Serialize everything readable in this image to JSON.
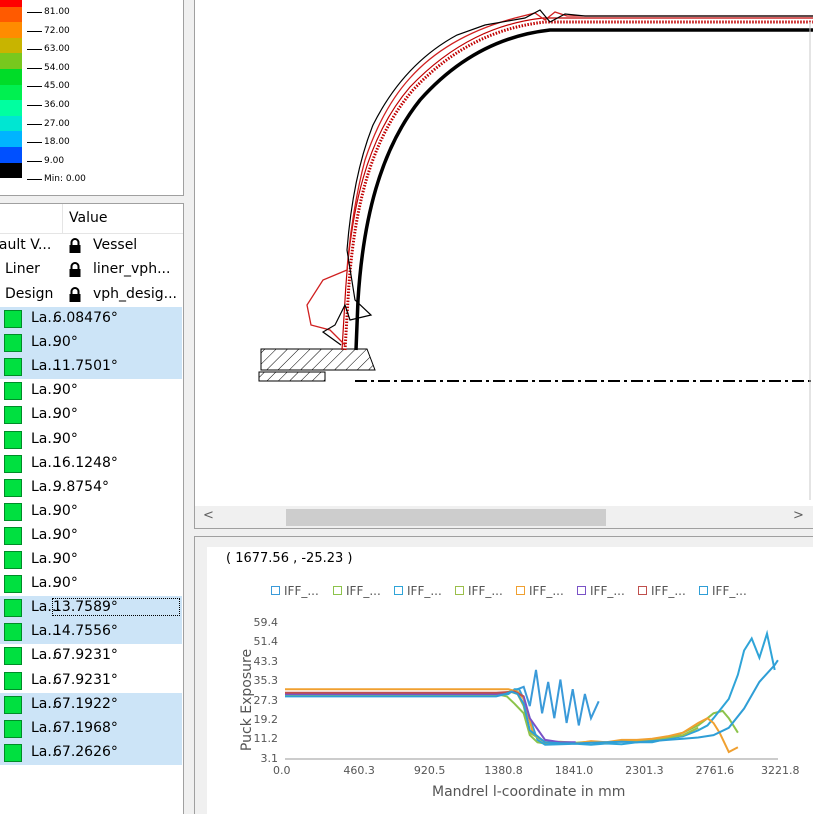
{
  "legend": {
    "labels": [
      "81.00",
      "72.00",
      "63.00",
      "54.00",
      "45.00",
      "36.00",
      "27.00",
      "18.00",
      "9.00",
      "Min: 0.00"
    ],
    "colors": [
      "#ff0000",
      "#ff5a00",
      "#ff8c00",
      "#c8b400",
      "#78c81e",
      "#00dc28",
      "#00f050",
      "#00ffa0",
      "#00e6d2",
      "#00b4ff",
      "#0050ff",
      "#000000"
    ]
  },
  "properties": {
    "header_value": "Value",
    "lock_rows": [
      {
        "name": "fault V...",
        "value": "Vessel"
      },
      {
        "name": "Liner",
        "value": "liner_vph..."
      },
      {
        "name": "Design",
        "value": "vph_desig..."
      }
    ],
    "layers": [
      {
        "name": "La...",
        "value": "6.08476°",
        "selected": true
      },
      {
        "name": "La...",
        "value": "90°",
        "selected": true
      },
      {
        "name": "La...",
        "value": "11.7501°",
        "selected": true
      },
      {
        "name": "La...",
        "value": "90°",
        "selected": false
      },
      {
        "name": "La...",
        "value": "90°",
        "selected": false
      },
      {
        "name": "La...",
        "value": "90°",
        "selected": false
      },
      {
        "name": "La...",
        "value": "16.1248°",
        "selected": false
      },
      {
        "name": "La...",
        "value": "9.8754°",
        "selected": false
      },
      {
        "name": "La...",
        "value": "90°",
        "selected": false
      },
      {
        "name": "La...",
        "value": "90°",
        "selected": false
      },
      {
        "name": "La...",
        "value": "90°",
        "selected": false
      },
      {
        "name": "La...",
        "value": "90°",
        "selected": false
      },
      {
        "name": "La...",
        "value": "13.7589°",
        "selected": true,
        "focus": true
      },
      {
        "name": "La...",
        "value": "14.7556°",
        "selected": true
      },
      {
        "name": "La...",
        "value": "67.9231°",
        "selected": false
      },
      {
        "name": "La...",
        "value": "67.9231°",
        "selected": false
      },
      {
        "name": "La...",
        "value": "67.1922°",
        "selected": true
      },
      {
        "name": "La...",
        "value": "67.1968°",
        "selected": true
      },
      {
        "name": "La...",
        "value": "67.2626°",
        "selected": true
      }
    ]
  },
  "scroll": {
    "left_arrow": "<",
    "right_arrow": ">"
  },
  "coordinates_readout": "( 1677.56 , -25.23 )",
  "chart_data": {
    "type": "line",
    "xlabel": "Mandrel l-coordinate in mm",
    "ylabel": "Puck Exposure",
    "x_ticks": [
      "0.0",
      "460.3",
      "920.5",
      "1380.8",
      "1841.0",
      "2301.3",
      "2761.6",
      "3221.8"
    ],
    "y_ticks": [
      "59.4",
      "51.4",
      "43.3",
      "35.3",
      "27.3",
      "19.2",
      "11.2",
      "3.1"
    ],
    "xlim": [
      0,
      3221.8
    ],
    "ylim": [
      3.1,
      59.4
    ],
    "legend_position": "top",
    "series": [
      {
        "name": "IFF_...",
        "color": "#3a9ad9",
        "x": [
          0,
          1380,
          1480,
          1560,
          1600,
          1640,
          1680,
          1720,
          1760,
          1800,
          1840,
          1880,
          1920,
          1960,
          2000,
          2050
        ],
        "y": [
          29.5,
          29.5,
          31,
          33,
          25,
          40,
          22,
          35,
          20,
          36,
          18,
          32,
          17,
          30,
          20,
          27
        ]
      },
      {
        "name": "IFF_...",
        "color": "#8cc34b",
        "x": [
          0,
          1380,
          1450,
          1500,
          1560,
          1600,
          1650,
          1700,
          1800,
          1900,
          2000,
          2100,
          2200,
          2300,
          2400,
          2500,
          2600,
          2700,
          2761,
          2800,
          2860,
          2900,
          2960
        ],
        "y": [
          30,
          30,
          29,
          26,
          22,
          13,
          10,
          9.5,
          9.8,
          9.5,
          10,
          9.6,
          10.5,
          10,
          11,
          12,
          14,
          17,
          20,
          22,
          23,
          20,
          14
        ]
      },
      {
        "name": "IFF_...",
        "color": "#2fa4d8",
        "x": [
          0,
          1380,
          1460,
          1500,
          1530,
          1560,
          1600,
          1650,
          1700,
          1800,
          1900,
          2000,
          2100,
          2200,
          2300,
          2400,
          2500,
          2600,
          2700,
          2761,
          2800,
          2900,
          2960,
          3000,
          3050,
          3100,
          3150,
          3200
        ],
        "y": [
          29.5,
          29.5,
          30,
          32,
          32,
          28,
          20,
          11,
          9,
          9.2,
          9.4,
          9,
          9.5,
          9.2,
          10,
          10,
          11.5,
          12.5,
          15,
          17,
          20,
          28,
          38,
          48,
          53,
          45,
          55,
          40
        ]
      },
      {
        "name": "IFF_...",
        "color": "#9bbf4a",
        "x": [
          0,
          1380,
          1470,
          1520,
          1560,
          1600,
          1700,
          1800,
          1900,
          2000,
          2100,
          2200,
          2300,
          2400,
          2500,
          2600,
          2700
        ],
        "y": [
          29.5,
          29.5,
          31,
          30,
          25,
          14,
          10,
          10.2,
          9.8,
          10.3,
          10,
          10.5,
          10.8,
          11,
          12,
          13,
          16
        ]
      },
      {
        "name": "IFF_...",
        "color": "#f0a030",
        "x": [
          0,
          1380,
          1460,
          1520,
          1560,
          1620,
          1700,
          1800,
          1900,
          2000,
          2100,
          2200,
          2300,
          2400,
          2500,
          2600,
          2700,
          2761,
          2800,
          2840,
          2870,
          2900,
          2960
        ],
        "y": [
          32,
          32,
          32,
          31,
          28,
          14,
          10,
          10,
          9.5,
          10.5,
          10,
          11,
          11,
          11.5,
          12.5,
          14,
          18,
          20,
          18,
          14,
          10,
          6,
          8
        ]
      },
      {
        "name": "IFF_...",
        "color": "#7a52c7",
        "x": [
          0,
          1380,
          1500,
          1560,
          1600,
          1700,
          1800,
          1900
        ],
        "y": [
          30,
          30,
          31,
          29,
          20,
          11,
          10,
          10
        ]
      },
      {
        "name": "IFF_...",
        "color": "#c0504d",
        "x": [
          0,
          1380,
          1500,
          1560
        ],
        "y": [
          30.5,
          30.5,
          31,
          29
        ]
      },
      {
        "name": "IFF_...",
        "color": "#2f9ed6",
        "x": [
          0,
          1380,
          1440,
          1480,
          1520,
          1560,
          1600,
          1700,
          1800,
          1900,
          2000,
          2100,
          2200,
          2300,
          2400,
          2500,
          2600,
          2700,
          2800,
          2900,
          3000,
          3100,
          3200,
          3221
        ],
        "y": [
          29,
          29,
          30,
          31,
          30,
          26,
          15,
          10,
          9.6,
          9.5,
          9.8,
          10,
          10.2,
          10,
          10.5,
          11,
          11.5,
          12,
          13,
          16,
          24,
          35,
          42,
          44
        ]
      }
    ]
  }
}
